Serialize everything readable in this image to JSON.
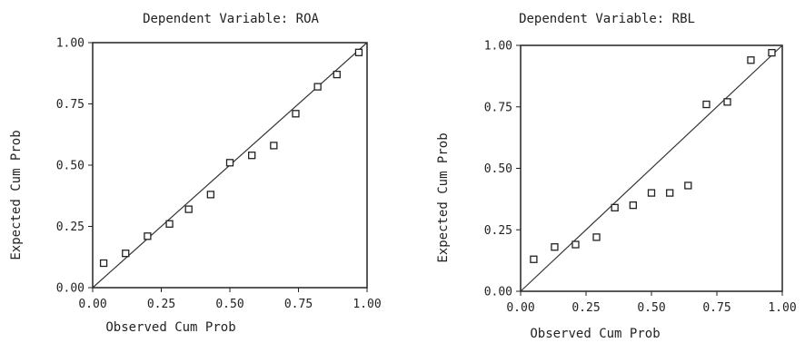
{
  "chart_data": [
    {
      "type": "scatter",
      "title": "Dependent Variable: ROA",
      "xlabel": "Observed Cum Prob",
      "ylabel": "Expected Cum Prob",
      "xlim": [
        0,
        1
      ],
      "ylim": [
        0,
        1
      ],
      "xticks": [
        "0.00",
        "0.25",
        "0.50",
        "0.75",
        "1.00"
      ],
      "yticks": [
        "0.00",
        "0.25",
        "0.50",
        "0.75",
        "1.00"
      ],
      "grid": false,
      "reference_line": "diagonal",
      "points": [
        {
          "x": 0.04,
          "y": 0.1
        },
        {
          "x": 0.12,
          "y": 0.14
        },
        {
          "x": 0.2,
          "y": 0.21
        },
        {
          "x": 0.28,
          "y": 0.26
        },
        {
          "x": 0.35,
          "y": 0.32
        },
        {
          "x": 0.43,
          "y": 0.38
        },
        {
          "x": 0.5,
          "y": 0.51
        },
        {
          "x": 0.58,
          "y": 0.54
        },
        {
          "x": 0.66,
          "y": 0.58
        },
        {
          "x": 0.74,
          "y": 0.71
        },
        {
          "x": 0.82,
          "y": 0.82
        },
        {
          "x": 0.89,
          "y": 0.87
        },
        {
          "x": 0.97,
          "y": 0.96
        }
      ]
    },
    {
      "type": "scatter",
      "title": "Dependent Variable: RBL",
      "xlabel": "Observed Cum Prob",
      "ylabel": "Expected Cum Prob",
      "xlim": [
        0,
        1
      ],
      "ylim": [
        0,
        1
      ],
      "xticks": [
        "0.00",
        "0.25",
        "0.50",
        "0.75",
        "1.00"
      ],
      "yticks": [
        "0.00",
        "0.25",
        "0.50",
        "0.75",
        "1.00"
      ],
      "grid": false,
      "reference_line": "diagonal",
      "points": [
        {
          "x": 0.05,
          "y": 0.13
        },
        {
          "x": 0.13,
          "y": 0.18
        },
        {
          "x": 0.21,
          "y": 0.19
        },
        {
          "x": 0.29,
          "y": 0.22
        },
        {
          "x": 0.36,
          "y": 0.34
        },
        {
          "x": 0.43,
          "y": 0.35
        },
        {
          "x": 0.5,
          "y": 0.4
        },
        {
          "x": 0.57,
          "y": 0.4
        },
        {
          "x": 0.64,
          "y": 0.43
        },
        {
          "x": 0.71,
          "y": 0.76
        },
        {
          "x": 0.79,
          "y": 0.77
        },
        {
          "x": 0.88,
          "y": 0.94
        },
        {
          "x": 0.96,
          "y": 0.97
        }
      ]
    }
  ]
}
